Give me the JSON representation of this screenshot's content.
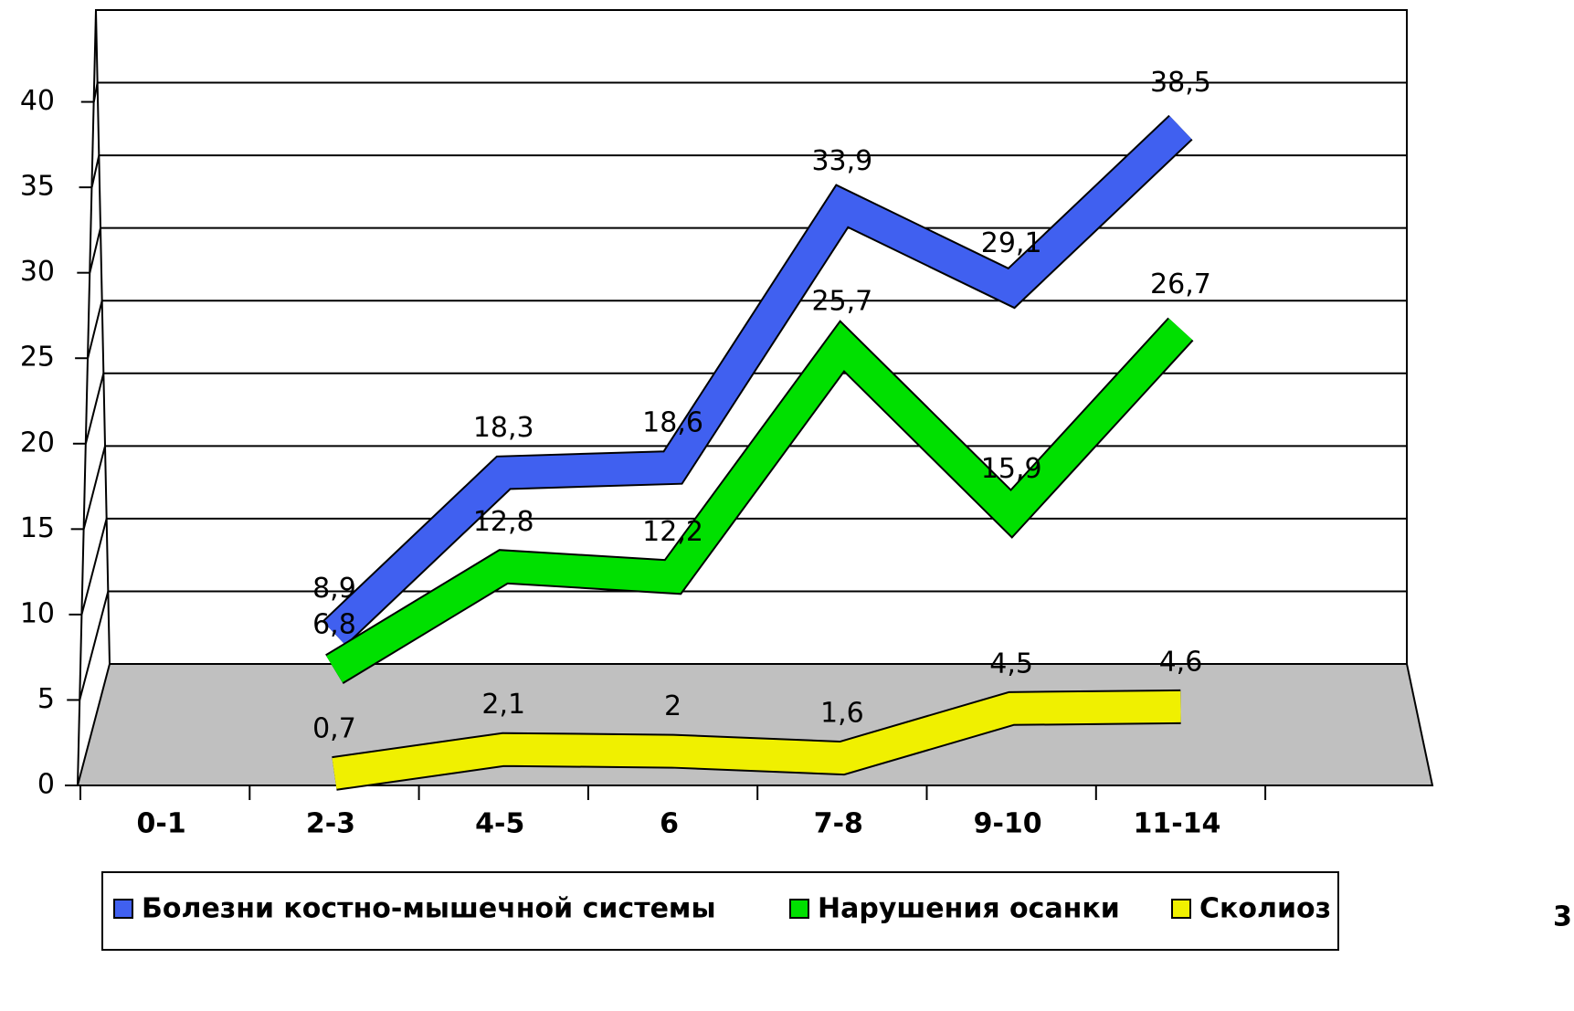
{
  "chart_data": {
    "type": "line",
    "categories": [
      "0-1",
      "2-3",
      "4-5",
      "6",
      "7-8",
      "9-10",
      "11-14"
    ],
    "series": [
      {
        "name": "Болезни костно-мышечной системы",
        "color": "#4060f0",
        "values": [
          null,
          8.9,
          18.3,
          18.6,
          33.9,
          29.1,
          38.5
        ],
        "value_labels": [
          null,
          "8,9",
          "18,3",
          "18,6",
          "33,9",
          "29,1",
          "38,5"
        ]
      },
      {
        "name": "Нарушения осанки",
        "color": "#00e000",
        "values": [
          null,
          6.8,
          12.8,
          12.2,
          25.7,
          15.9,
          26.7
        ],
        "value_labels": [
          null,
          "6,8",
          "12,8",
          "12,2",
          "25,7",
          "15,9",
          "26,7"
        ]
      },
      {
        "name": "Сколиоз",
        "color": "#f0f000",
        "values": [
          null,
          0.7,
          2.1,
          2,
          1.6,
          4.5,
          4.6
        ],
        "value_labels": [
          null,
          "0,7",
          "2,1",
          "2",
          "1,6",
          "4,5",
          "4,6"
        ]
      }
    ],
    "ylim": [
      0,
      45
    ],
    "yticks": [
      0,
      5,
      10,
      15,
      20,
      25,
      30,
      35,
      40
    ],
    "grid": true,
    "legend": "bottom"
  },
  "page_number": "3"
}
